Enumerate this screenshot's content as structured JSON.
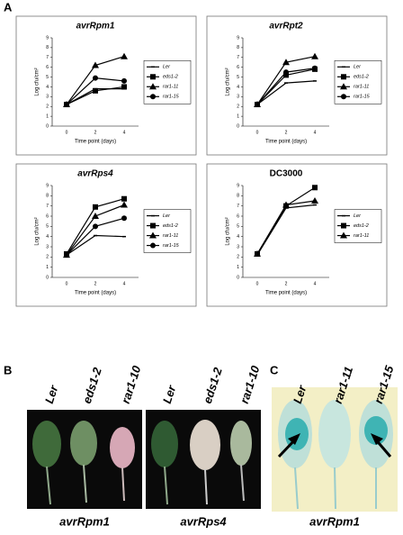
{
  "panel_a": {
    "label": "A"
  },
  "chart_data": [
    {
      "type": "line",
      "title": "avrRpm1",
      "xlabel": "Time point (days)",
      "ylabel": "Log cfu/cm²",
      "categories": [
        "0",
        "2",
        "4"
      ],
      "ylim": [
        0,
        9
      ],
      "yticks": [
        0,
        1,
        2,
        3,
        4,
        5,
        6,
        7,
        8,
        9
      ],
      "series": [
        {
          "name": "Ler",
          "color": "#000000",
          "marker": "none",
          "values": [
            2.2,
            3.8,
            3.8
          ]
        },
        {
          "name": "eds1-2",
          "color": "#000000",
          "marker": "square",
          "values": [
            2.2,
            3.6,
            4.0
          ]
        },
        {
          "name": "rar1-11",
          "color": "#000000",
          "marker": "triangle",
          "values": [
            2.2,
            6.2,
            7.1
          ]
        },
        {
          "name": "rar1-15",
          "color": "#000000",
          "marker": "circle",
          "values": [
            2.2,
            4.9,
            4.6
          ]
        }
      ]
    },
    {
      "type": "line",
      "title": "avrRpt2",
      "xlabel": "Time point (days)",
      "ylabel": "Log cfu/cm²",
      "categories": [
        "0",
        "2",
        "4"
      ],
      "ylim": [
        0,
        9
      ],
      "yticks": [
        0,
        1,
        2,
        3,
        4,
        5,
        6,
        7,
        8,
        9
      ],
      "series": [
        {
          "name": "Ler",
          "color": "#000000",
          "marker": "none",
          "values": [
            2.2,
            4.4,
            4.6
          ]
        },
        {
          "name": "eds1-2",
          "color": "#000000",
          "marker": "square",
          "values": [
            2.2,
            5.2,
            5.8
          ]
        },
        {
          "name": "rar1-11",
          "color": "#000000",
          "marker": "triangle",
          "values": [
            2.2,
            6.5,
            7.1
          ]
        },
        {
          "name": "rar1-15",
          "color": "#000000",
          "marker": "circle",
          "values": [
            2.2,
            5.5,
            5.9
          ]
        }
      ]
    },
    {
      "type": "line",
      "title": "avrRps4",
      "xlabel": "Time point (days)",
      "ylabel": "Log cfu/cm²",
      "categories": [
        "0",
        "2",
        "4"
      ],
      "ylim": [
        0,
        9
      ],
      "yticks": [
        0,
        1,
        2,
        3,
        4,
        5,
        6,
        7,
        8,
        9
      ],
      "series": [
        {
          "name": "Ler",
          "color": "#000000",
          "marker": "none",
          "values": [
            2.2,
            4.1,
            4.0
          ]
        },
        {
          "name": "eds1-2",
          "color": "#000000",
          "marker": "square",
          "values": [
            2.3,
            6.9,
            7.7
          ]
        },
        {
          "name": "rar1-11",
          "color": "#000000",
          "marker": "triangle",
          "values": [
            2.2,
            6.0,
            7.1
          ]
        },
        {
          "name": "rar1-15",
          "color": "#000000",
          "marker": "circle",
          "values": [
            2.2,
            5.0,
            5.8
          ]
        }
      ]
    },
    {
      "type": "line",
      "title": "DC3000",
      "xlabel": "Time point (days)",
      "ylabel": "Log cfu/cm²",
      "categories": [
        "0",
        "2",
        "4"
      ],
      "ylim": [
        0,
        9
      ],
      "yticks": [
        0,
        1,
        2,
        3,
        4,
        5,
        6,
        7,
        8,
        9
      ],
      "series": [
        {
          "name": "Ler",
          "color": "#000000",
          "marker": "none",
          "values": [
            2.2,
            6.8,
            7.1
          ]
        },
        {
          "name": "eds1-2",
          "color": "#000000",
          "marker": "square",
          "values": [
            2.3,
            7.0,
            8.8
          ]
        },
        {
          "name": "rar1-11",
          "color": "#000000",
          "marker": "triangle",
          "values": [
            2.3,
            7.1,
            7.5
          ]
        }
      ]
    }
  ],
  "panel_b": {
    "label": "B",
    "leaves_left": [
      "Ler",
      "eds1-2",
      "rar1-10"
    ],
    "leaves_right": [
      "Ler",
      "eds1-2",
      "rar1-10"
    ],
    "caption_left": "avrRpm1",
    "caption_right": "avrRps4"
  },
  "panel_c": {
    "label": "C",
    "leaves": [
      "Ler",
      "rar1-11",
      "rar1-15"
    ],
    "caption": "avrRpm1"
  }
}
